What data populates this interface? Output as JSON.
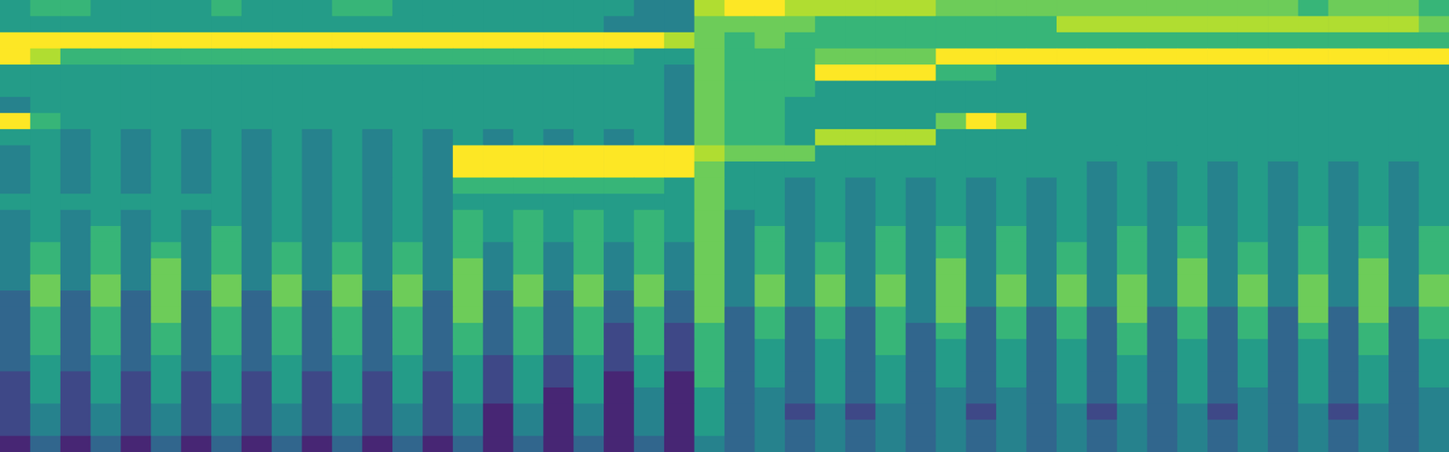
{
  "chart_data": {
    "type": "heatmap",
    "color": "viridis",
    "tick_labels": false,
    "zlim": [
      0,
      9
    ],
    "cells": [
      [
        5,
        6,
        6,
        5,
        5,
        5,
        5,
        6,
        5,
        5,
        5,
        6,
        6,
        5,
        5,
        5,
        5,
        5,
        5,
        5,
        5,
        4,
        4,
        8,
        9,
        9,
        8,
        8,
        8,
        8,
        8,
        7,
        7,
        7,
        7,
        7,
        7,
        7,
        7,
        7,
        7,
        7,
        7,
        6,
        7,
        7,
        7,
        6
      ],
      [
        5,
        5,
        5,
        5,
        5,
        5,
        5,
        5,
        5,
        5,
        5,
        5,
        5,
        5,
        5,
        5,
        5,
        5,
        5,
        5,
        4,
        4,
        4,
        7,
        7,
        7,
        7,
        6,
        6,
        6,
        6,
        6,
        6,
        6,
        6,
        8,
        8,
        8,
        8,
        8,
        8,
        8,
        8,
        8,
        8,
        8,
        8,
        7
      ],
      [
        9,
        9,
        9,
        9,
        9,
        9,
        9,
        9,
        9,
        9,
        9,
        9,
        9,
        9,
        9,
        9,
        9,
        9,
        9,
        9,
        9,
        9,
        8,
        7,
        6,
        7,
        6,
        6,
        6,
        6,
        6,
        6,
        6,
        6,
        6,
        6,
        6,
        6,
        6,
        6,
        6,
        6,
        6,
        6,
        6,
        6,
        6,
        6
      ],
      [
        9,
        8,
        6,
        6,
        6,
        6,
        6,
        6,
        6,
        6,
        6,
        6,
        6,
        6,
        6,
        6,
        6,
        6,
        6,
        6,
        6,
        5,
        5,
        7,
        6,
        6,
        6,
        7,
        7,
        7,
        7,
        9,
        9,
        9,
        9,
        9,
        9,
        9,
        9,
        9,
        9,
        9,
        9,
        9,
        9,
        9,
        9,
        9
      ],
      [
        5,
        5,
        5,
        5,
        5,
        5,
        5,
        5,
        5,
        5,
        5,
        5,
        5,
        5,
        5,
        5,
        5,
        5,
        5,
        5,
        5,
        5,
        4,
        7,
        6,
        6,
        6,
        9,
        9,
        9,
        9,
        6,
        6,
        5,
        5,
        5,
        5,
        5,
        5,
        5,
        5,
        5,
        5,
        5,
        5,
        5,
        5,
        5
      ],
      [
        5,
        5,
        5,
        5,
        5,
        5,
        5,
        5,
        5,
        5,
        5,
        5,
        5,
        5,
        5,
        5,
        5,
        5,
        5,
        5,
        5,
        5,
        4,
        7,
        6,
        6,
        6,
        5,
        5,
        5,
        5,
        5,
        5,
        5,
        5,
        5,
        5,
        5,
        5,
        5,
        5,
        5,
        5,
        5,
        5,
        5,
        5,
        5
      ],
      [
        4,
        5,
        5,
        5,
        5,
        5,
        5,
        5,
        5,
        5,
        5,
        5,
        5,
        5,
        5,
        5,
        5,
        5,
        5,
        5,
        5,
        5,
        4,
        7,
        6,
        6,
        5,
        5,
        5,
        5,
        5,
        5,
        5,
        5,
        5,
        5,
        5,
        5,
        5,
        5,
        5,
        5,
        5,
        5,
        5,
        5,
        5,
        5
      ],
      [
        9,
        6,
        5,
        5,
        5,
        5,
        5,
        5,
        5,
        5,
        5,
        5,
        5,
        5,
        5,
        5,
        5,
        5,
        5,
        5,
        5,
        5,
        4,
        7,
        6,
        6,
        5,
        5,
        5,
        5,
        5,
        7,
        9,
        8,
        5,
        5,
        5,
        5,
        5,
        5,
        5,
        5,
        5,
        5,
        5,
        5,
        5,
        5
      ],
      [
        5,
        5,
        4,
        5,
        4,
        5,
        4,
        5,
        4,
        5,
        4,
        5,
        4,
        5,
        4,
        5,
        4,
        5,
        4,
        5,
        4,
        5,
        4,
        7,
        6,
        6,
        5,
        8,
        8,
        8,
        8,
        5,
        5,
        5,
        5,
        5,
        5,
        5,
        5,
        5,
        5,
        5,
        5,
        5,
        5,
        5,
        5,
        5
      ],
      [
        4,
        5,
        4,
        5,
        4,
        5,
        4,
        5,
        4,
        5,
        4,
        5,
        4,
        5,
        4,
        9,
        9,
        9,
        9,
        9,
        9,
        9,
        9,
        8,
        7,
        7,
        7,
        5,
        5,
        5,
        5,
        5,
        5,
        5,
        5,
        5,
        5,
        5,
        5,
        5,
        5,
        5,
        5,
        5,
        5,
        5,
        5,
        5
      ],
      [
        4,
        5,
        4,
        5,
        4,
        5,
        4,
        5,
        4,
        5,
        4,
        5,
        4,
        5,
        4,
        9,
        9,
        9,
        9,
        9,
        9,
        9,
        9,
        7,
        5,
        5,
        5,
        5,
        5,
        5,
        5,
        5,
        5,
        5,
        5,
        5,
        4,
        5,
        4,
        5,
        4,
        5,
        4,
        5,
        4,
        5,
        4,
        5
      ],
      [
        4,
        5,
        4,
        5,
        4,
        5,
        4,
        5,
        4,
        5,
        4,
        5,
        4,
        5,
        4,
        6,
        6,
        6,
        6,
        6,
        6,
        6,
        5,
        7,
        5,
        5,
        4,
        5,
        4,
        5,
        4,
        5,
        4,
        5,
        4,
        5,
        4,
        5,
        4,
        5,
        4,
        5,
        4,
        5,
        4,
        5,
        4,
        5
      ],
      [
        5,
        5,
        5,
        5,
        5,
        5,
        5,
        5,
        4,
        5,
        4,
        5,
        4,
        5,
        4,
        5,
        5,
        5,
        5,
        5,
        5,
        5,
        5,
        7,
        5,
        5,
        4,
        5,
        4,
        5,
        4,
        5,
        4,
        5,
        4,
        5,
        4,
        5,
        4,
        5,
        4,
        5,
        4,
        5,
        4,
        5,
        4,
        5
      ],
      [
        4,
        5,
        4,
        5,
        4,
        5,
        4,
        5,
        4,
        5,
        4,
        5,
        4,
        5,
        4,
        6,
        5,
        6,
        5,
        6,
        5,
        6,
        5,
        7,
        4,
        5,
        4,
        5,
        4,
        5,
        4,
        5,
        4,
        5,
        4,
        5,
        4,
        5,
        4,
        5,
        4,
        5,
        4,
        5,
        4,
        5,
        4,
        5
      ],
      [
        4,
        5,
        4,
        6,
        4,
        5,
        4,
        6,
        4,
        5,
        4,
        5,
        4,
        5,
        4,
        6,
        5,
        6,
        5,
        6,
        5,
        6,
        5,
        7,
        4,
        6,
        4,
        5,
        4,
        6,
        4,
        6,
        4,
        6,
        4,
        5,
        4,
        6,
        4,
        6,
        4,
        5,
        4,
        6,
        4,
        6,
        4,
        6
      ],
      [
        4,
        6,
        4,
        6,
        4,
        6,
        4,
        6,
        4,
        6,
        4,
        6,
        4,
        6,
        4,
        6,
        4,
        6,
        4,
        6,
        4,
        6,
        4,
        7,
        4,
        6,
        4,
        6,
        4,
        6,
        4,
        6,
        4,
        6,
        4,
        6,
        4,
        6,
        4,
        6,
        4,
        6,
        4,
        6,
        4,
        6,
        4,
        6
      ],
      [
        4,
        6,
        4,
        6,
        4,
        7,
        4,
        6,
        4,
        6,
        4,
        6,
        4,
        6,
        4,
        7,
        4,
        6,
        4,
        6,
        4,
        6,
        4,
        7,
        4,
        6,
        4,
        6,
        4,
        6,
        4,
        7,
        4,
        6,
        4,
        6,
        4,
        6,
        4,
        7,
        4,
        6,
        4,
        6,
        4,
        7,
        4,
        6
      ],
      [
        4,
        7,
        4,
        7,
        4,
        7,
        4,
        7,
        4,
        7,
        4,
        7,
        4,
        7,
        4,
        7,
        4,
        7,
        4,
        7,
        4,
        7,
        4,
        7,
        4,
        7,
        4,
        7,
        4,
        7,
        4,
        7,
        4,
        7,
        4,
        7,
        4,
        7,
        4,
        7,
        4,
        7,
        4,
        7,
        4,
        7,
        4,
        7
      ],
      [
        3,
        7,
        3,
        7,
        3,
        7,
        3,
        7,
        3,
        7,
        3,
        7,
        3,
        7,
        3,
        7,
        3,
        7,
        3,
        7,
        3,
        7,
        3,
        7,
        4,
        7,
        4,
        7,
        4,
        7,
        4,
        7,
        4,
        7,
        4,
        7,
        4,
        7,
        4,
        7,
        4,
        7,
        4,
        7,
        4,
        7,
        4,
        7
      ],
      [
        3,
        6,
        3,
        6,
        3,
        7,
        3,
        6,
        3,
        6,
        3,
        6,
        3,
        6,
        3,
        7,
        3,
        6,
        3,
        6,
        3,
        6,
        3,
        7,
        3,
        6,
        3,
        6,
        3,
        6,
        4,
        7,
        3,
        6,
        3,
        6,
        3,
        7,
        3,
        6,
        3,
        6,
        3,
        7,
        3,
        7,
        3,
        6
      ],
      [
        3,
        6,
        3,
        6,
        3,
        6,
        3,
        6,
        3,
        6,
        3,
        6,
        3,
        6,
        3,
        6,
        3,
        6,
        3,
        6,
        2,
        6,
        2,
        6,
        3,
        6,
        3,
        6,
        3,
        6,
        3,
        6,
        3,
        6,
        3,
        6,
        3,
        6,
        3,
        6,
        3,
        6,
        3,
        6,
        3,
        6,
        3,
        6
      ],
      [
        3,
        6,
        3,
        6,
        3,
        6,
        3,
        6,
        3,
        6,
        3,
        6,
        3,
        6,
        3,
        6,
        3,
        6,
        3,
        6,
        2,
        6,
        2,
        6,
        3,
        5,
        3,
        5,
        3,
        6,
        3,
        5,
        3,
        5,
        3,
        5,
        3,
        6,
        3,
        5,
        3,
        5,
        3,
        5,
        3,
        6,
        3,
        5
      ],
      [
        3,
        5,
        3,
        5,
        3,
        5,
        3,
        5,
        3,
        5,
        3,
        5,
        3,
        5,
        3,
        5,
        2,
        5,
        2,
        5,
        2,
        5,
        2,
        6,
        3,
        5,
        3,
        5,
        3,
        5,
        3,
        5,
        3,
        5,
        3,
        5,
        3,
        5,
        3,
        5,
        3,
        5,
        3,
        5,
        3,
        5,
        3,
        5
      ],
      [
        2,
        5,
        2,
        5,
        2,
        5,
        2,
        5,
        2,
        5,
        2,
        5,
        2,
        5,
        2,
        5,
        2,
        5,
        2,
        5,
        1,
        5,
        1,
        6,
        3,
        5,
        3,
        5,
        3,
        5,
        3,
        5,
        3,
        5,
        3,
        5,
        3,
        5,
        3,
        5,
        3,
        5,
        3,
        5,
        3,
        5,
        3,
        5
      ],
      [
        2,
        5,
        2,
        5,
        2,
        5,
        2,
        5,
        2,
        5,
        2,
        5,
        2,
        5,
        2,
        5,
        2,
        5,
        1,
        5,
        1,
        4,
        1,
        5,
        3,
        4,
        3,
        5,
        3,
        5,
        3,
        4,
        3,
        4,
        3,
        5,
        3,
        5,
        3,
        5,
        3,
        4,
        3,
        5,
        3,
        5,
        3,
        4
      ],
      [
        2,
        4,
        2,
        4,
        2,
        4,
        2,
        4,
        2,
        4,
        2,
        4,
        2,
        4,
        2,
        4,
        1,
        4,
        1,
        4,
        1,
        4,
        1,
        5,
        3,
        4,
        2,
        4,
        2,
        4,
        3,
        4,
        2,
        4,
        3,
        4,
        2,
        4,
        3,
        4,
        2,
        4,
        3,
        4,
        2,
        4,
        3,
        4
      ],
      [
        2,
        4,
        2,
        4,
        2,
        4,
        2,
        4,
        2,
        4,
        2,
        4,
        2,
        4,
        2,
        4,
        1,
        4,
        1,
        4,
        1,
        4,
        1,
        5,
        3,
        4,
        3,
        4,
        3,
        4,
        3,
        4,
        3,
        4,
        3,
        4,
        3,
        4,
        3,
        4,
        3,
        4,
        3,
        4,
        3,
        4,
        3,
        4
      ],
      [
        1,
        3,
        1,
        3,
        1,
        3,
        1,
        3,
        1,
        3,
        1,
        3,
        1,
        3,
        1,
        3,
        1,
        3,
        1,
        3,
        1,
        3,
        1,
        4,
        3,
        4,
        3,
        4,
        3,
        4,
        3,
        4,
        3,
        4,
        3,
        4,
        3,
        4,
        3,
        4,
        3,
        4,
        3,
        4,
        3,
        4,
        3,
        4
      ]
    ]
  }
}
